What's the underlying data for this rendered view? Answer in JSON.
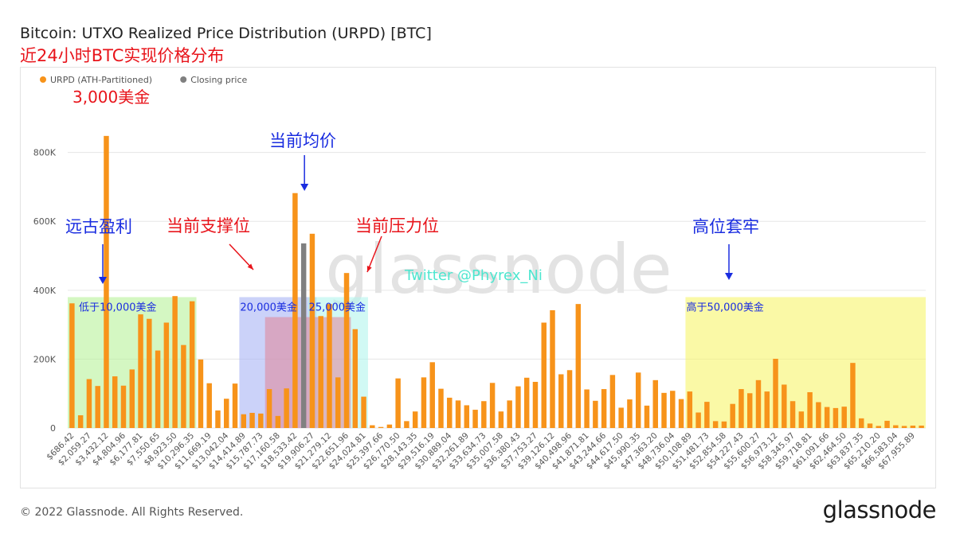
{
  "header": {
    "title": "Bitcoin: UTXO Realized Price Distribution (URPD) [BTC]",
    "subtitle": "近24小时BTC实现价格分布"
  },
  "footer": {
    "copyright": "© 2022 Glassnode. All Rights Reserved.",
    "brand": "glassnode"
  },
  "watermark": "glassnode",
  "colors": {
    "urpd": "#f7931a",
    "closing": "#808080",
    "red_text": "#e8141b",
    "blue_text": "#1a2de0",
    "green_zone": "#b7f29a",
    "blue_zone": "#a8b4f5",
    "cyan_zone": "#b2f5ec",
    "pink_zone": "#e08a9e",
    "tan_zone": "#ccc0b0",
    "yellow_zone": "#f6f56a",
    "twitter_text": "#4de6cf"
  },
  "chart_data": {
    "type": "bar",
    "legend": [
      {
        "name": "URPD (ATH-Partitioned)",
        "color": "#f7931a"
      },
      {
        "name": "Closing price",
        "color": "#808080"
      }
    ],
    "legend_placement": "top-left",
    "ylim": [
      0,
      880000
    ],
    "yticks": [
      0,
      200000,
      400000,
      600000,
      800000
    ],
    "ytick_labels": [
      "0",
      "200K",
      "400K",
      "600K",
      "800K"
    ],
    "grid": true,
    "xtick_labels": [
      "$686.42",
      "$2,059.27",
      "$3,432.12",
      "$4,804.96",
      "$6,177.81",
      "$7,550.65",
      "$8,923.50",
      "$10,296.35",
      "$11,669.19",
      "$13,042.04",
      "$14,414.89",
      "$15,787.73",
      "$17,160.58",
      "$18,533.42",
      "$19,906.27",
      "$21,279.12",
      "$22,651.96",
      "$24,024.81",
      "$25,397.66",
      "$26,770.50",
      "$28,143.35",
      "$29,516.19",
      "$30,889.04",
      "$32,261.89",
      "$33,634.73",
      "$35,007.58",
      "$36,380.43",
      "$37,753.27",
      "$39,126.12",
      "$40,498.96",
      "$41,871.81",
      "$43,244.66",
      "$44,617.50",
      "$45,990.35",
      "$47,363.20",
      "$48,736.04",
      "$50,108.89",
      "$51,481.73",
      "$52,854.58",
      "$54,227.43",
      "$55,600.27",
      "$56,973.12",
      "$58,345.97",
      "$59,718.81",
      "$61,091.66",
      "$62,464.50",
      "$63,837.35",
      "$65,210.20",
      "$66,583.04",
      "$67,955.89"
    ],
    "bars_per_tick": 2,
    "values": [
      362000,
      37000,
      142000,
      122000,
      848000,
      150000,
      123000,
      170000,
      330000,
      317000,
      225000,
      306000,
      383000,
      241000,
      368000,
      199000,
      130000,
      51000,
      85000,
      129000,
      40000,
      44000,
      42000,
      113000,
      35000,
      115000,
      682000,
      536000,
      564000,
      325000,
      360000,
      147000,
      450000,
      287000,
      91000,
      8000,
      3000,
      10000,
      144000,
      20000,
      48000,
      147000,
      191000,
      114000,
      88000,
      80000,
      66000,
      53000,
      78000,
      131000,
      48000,
      80000,
      121000,
      146000,
      134000,
      306000,
      342000,
      156000,
      168000,
      360000,
      112000,
      79000,
      113000,
      154000,
      59000,
      83000,
      161000,
      65000,
      139000,
      102000,
      108000,
      84000,
      106000,
      45000,
      76000,
      20000,
      19000,
      70000,
      113000,
      101000,
      139000,
      106000,
      201000,
      126000,
      78000,
      48000,
      104000,
      75000,
      61000,
      58000,
      62000,
      189000,
      28000,
      13000,
      6000,
      21000,
      8000,
      6000,
      7000,
      7000
    ],
    "closing_price_index": 27,
    "regions": [
      {
        "from_index": 0,
        "to_index": 14,
        "top": 380000,
        "color_key": "green_zone",
        "label": "低于10,000美金"
      },
      {
        "from_index": 20,
        "to_index": 28,
        "top": 380000,
        "color_key": "blue_zone",
        "label": "20,000美金"
      },
      {
        "from_index": 28,
        "to_index": 34,
        "top": 380000,
        "color_key": "cyan_zone",
        "label": "25,000美金"
      },
      {
        "from_index": 23,
        "to_index": 32,
        "top": 322000,
        "color_key": "pink_zone",
        "label": ""
      },
      {
        "from_index": 72,
        "to_index": 99,
        "top": 380000,
        "color_key": "yellow_zone",
        "label": "高于50,000美金"
      }
    ],
    "annotations": [
      {
        "text": "3,000美金",
        "color_key": "red_text",
        "index": 4,
        "value": 880000,
        "arrow": false
      },
      {
        "text": "远古盈利",
        "color_key": "blue_text",
        "index": 3,
        "value": 650000,
        "arrow": true
      },
      {
        "text": "当前支撑位",
        "color_key": "red_text",
        "index": 20,
        "value": 650000,
        "arrow": true
      },
      {
        "text": "当前均价",
        "color_key": "blue_text",
        "index": 27,
        "value": 770000,
        "arrow": true
      },
      {
        "text": "当前压力位",
        "color_key": "red_text",
        "index": 33,
        "value": 650000,
        "arrow": true
      },
      {
        "text": "高位套牢",
        "color_key": "blue_text",
        "index": 74,
        "value": 650000,
        "arrow": true
      }
    ],
    "watermark_text": "Twitter @Phyrex_Ni"
  }
}
